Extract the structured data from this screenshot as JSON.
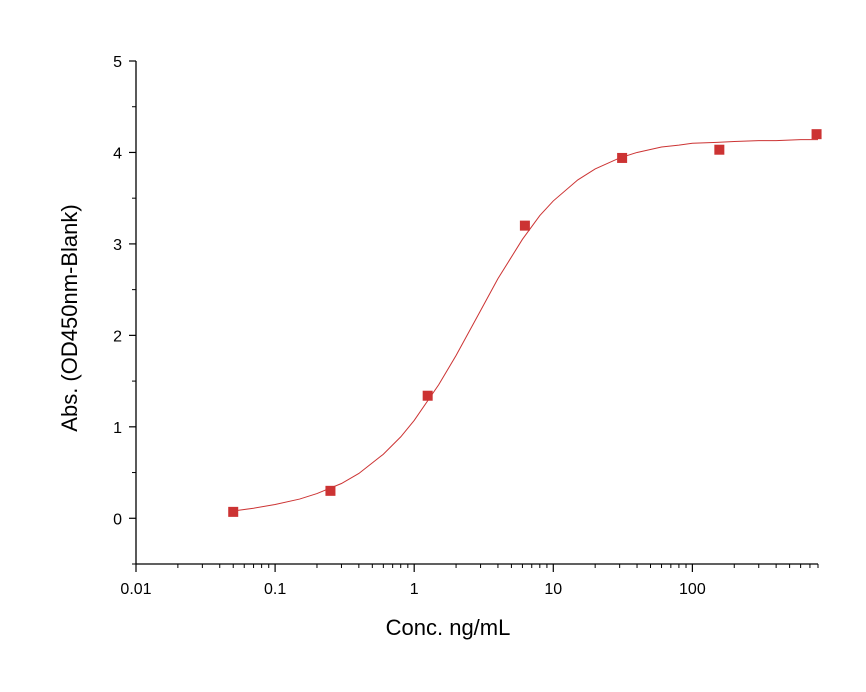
{
  "chart_data": {
    "type": "scatter",
    "title": "",
    "xlabel": "Conc. ng/mL",
    "ylabel": "Abs. (OD450nm-Blank)",
    "x_scale": "log",
    "xlim": [
      0.01,
      800
    ],
    "ylim": [
      -0.5,
      5
    ],
    "x_ticks": [
      0.01,
      0.1,
      1,
      10,
      100
    ],
    "x_tick_labels": [
      "0.01",
      "0.1",
      "1",
      "10",
      "100"
    ],
    "y_ticks": [
      0,
      1,
      2,
      3,
      4,
      5
    ],
    "y_tick_labels": [
      "0",
      "1",
      "2",
      "3",
      "4",
      "5"
    ],
    "grid": false,
    "legend": "none",
    "series": [
      {
        "x": [
          0.05,
          0.25,
          1.25,
          6.25,
          31.25,
          156.25,
          781.25
        ],
        "y": [
          0.07,
          0.3,
          1.34,
          3.2,
          3.94,
          4.03,
          4.2
        ],
        "marker": "square",
        "color": "#cc3333"
      }
    ],
    "fit": {
      "type": "four-parameter-logistic",
      "x": [
        0.05,
        0.07,
        0.1,
        0.15,
        0.2,
        0.3,
        0.4,
        0.6,
        0.8,
        1.0,
        1.5,
        2,
        3,
        4,
        6,
        8,
        10,
        15,
        20,
        30,
        40,
        60,
        80,
        100,
        150,
        200,
        300,
        400,
        600,
        800
      ],
      "y": [
        0.08,
        0.11,
        0.15,
        0.21,
        0.27,
        0.38,
        0.49,
        0.7,
        0.89,
        1.07,
        1.46,
        1.78,
        2.27,
        2.62,
        3.05,
        3.31,
        3.47,
        3.7,
        3.82,
        3.94,
        4.0,
        4.06,
        4.08,
        4.1,
        4.11,
        4.12,
        4.13,
        4.13,
        4.14,
        4.14
      ],
      "color": "#cc3333"
    }
  }
}
